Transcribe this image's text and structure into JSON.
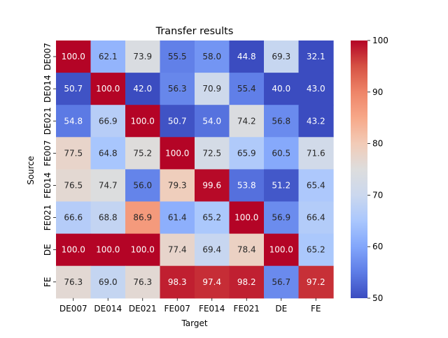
{
  "chart_data": {
    "type": "heatmap",
    "title": "Transfer results",
    "xlabel": "Target",
    "ylabel": "Source",
    "x_categories": [
      "DE007",
      "DE014",
      "DE021",
      "FE007",
      "FE014",
      "FE021",
      "DE",
      "FE"
    ],
    "y_categories": [
      "DE007",
      "DE014",
      "DE021",
      "FE007",
      "FE014",
      "FE021",
      "DE",
      "FE"
    ],
    "values": [
      [
        100.0,
        62.1,
        73.9,
        55.5,
        58.0,
        44.8,
        69.3,
        32.1
      ],
      [
        50.7,
        100.0,
        42.0,
        56.3,
        70.9,
        55.4,
        40.0,
        43.0
      ],
      [
        54.8,
        66.9,
        100.0,
        50.7,
        54.0,
        74.2,
        56.8,
        43.2
      ],
      [
        77.5,
        64.8,
        75.2,
        100.0,
        72.5,
        65.9,
        60.5,
        71.6
      ],
      [
        76.5,
        74.7,
        56.0,
        79.3,
        99.6,
        53.8,
        51.2,
        65.4
      ],
      [
        66.6,
        68.8,
        86.9,
        61.4,
        65.2,
        100.0,
        56.9,
        66.4
      ],
      [
        100.0,
        100.0,
        100.0,
        77.4,
        69.4,
        78.4,
        100.0,
        65.2
      ],
      [
        76.3,
        69.0,
        76.3,
        98.3,
        97.4,
        98.2,
        56.7,
        97.2
      ]
    ],
    "value_format": "0.1f",
    "colormap": "coolwarm",
    "colorbar": {
      "range": [
        50,
        100
      ],
      "ticks": [
        50,
        60,
        70,
        80,
        90,
        100
      ]
    },
    "colormap_stops": [
      "#3b4cc0",
      "#5d7ce6",
      "#82a6fb",
      "#aac7fd",
      "#cbd8ee",
      "#dddddd",
      "#f2cbb7",
      "#f7a889",
      "#ee8468",
      "#d65244",
      "#b40426"
    ],
    "annotation_colors": {
      "light": "#ffffff",
      "dark": "#262626"
    }
  }
}
